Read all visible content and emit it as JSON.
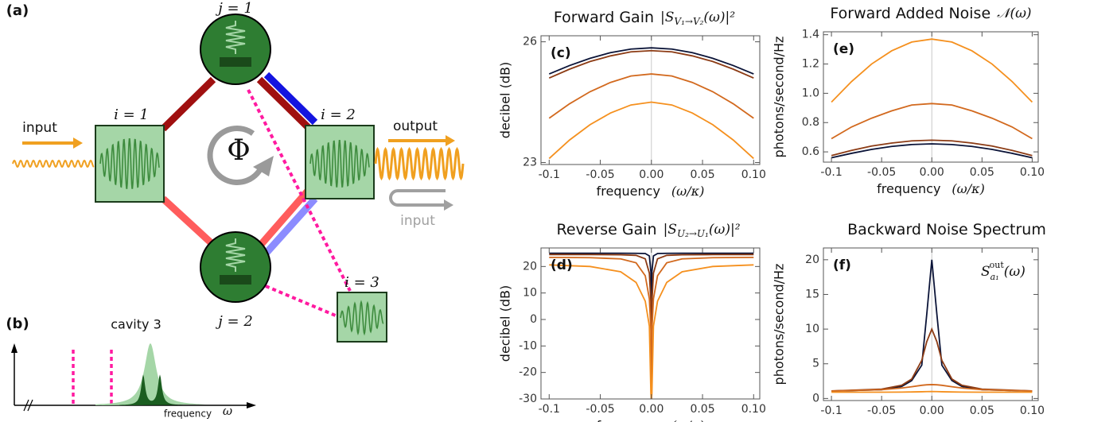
{
  "diagram": {
    "panel_a": "(a)",
    "panel_b": "(b)",
    "j1": "j = 1",
    "j2": "j = 2",
    "i1": "i = 1",
    "i2": "i = 2",
    "i3": "i = 3",
    "input_in": "input",
    "output": "output",
    "input_back": "input",
    "phi": "Φ",
    "cavity": "cavity 3",
    "freq": "frequency",
    "freq_sym": "ω"
  },
  "chart_data": [
    {
      "type": "line",
      "panel": "(c)",
      "title": "Forward Gain",
      "title_math": {
        "base": "|S",
        "sub": "V₁→V₂",
        "tail": "(ω)|²"
      },
      "ylabel": "decibel (dB)",
      "xlabel": "frequency",
      "xlabel_math": "(ω/κ)",
      "x": [
        -0.1,
        -0.08,
        -0.06,
        -0.04,
        -0.02,
        0,
        0.02,
        0.04,
        0.06,
        0.08,
        0.1
      ],
      "series": [
        {
          "color": "#0b1438",
          "values": [
            25.2,
            25.41,
            25.59,
            25.73,
            25.82,
            25.85,
            25.82,
            25.73,
            25.59,
            25.41,
            25.2
          ]
        },
        {
          "color": "#8c3b14",
          "values": [
            25.1,
            25.32,
            25.51,
            25.65,
            25.75,
            25.78,
            25.75,
            25.65,
            25.51,
            25.32,
            25.1
          ]
        },
        {
          "color": "#d2691e",
          "values": [
            24.1,
            24.46,
            24.76,
            24.99,
            25.15,
            25.2,
            25.15,
            24.99,
            24.76,
            24.46,
            24.1
          ]
        },
        {
          "color": "#f5901e",
          "values": [
            23.1,
            23.56,
            23.94,
            24.23,
            24.43,
            24.5,
            24.43,
            24.23,
            23.94,
            23.56,
            23.1
          ]
        }
      ],
      "xlim": [
        -0.108,
        0.106
      ],
      "xticks": [
        -0.1,
        -0.05,
        {
          "value": 0,
          "label": "0.00"
        },
        0.05,
        {
          "value": 0.1,
          "label": "0.10"
        }
      ],
      "ylim": [
        22.95,
        26.15
      ],
      "yticks": [
        23,
        26
      ]
    },
    {
      "type": "line",
      "panel": "(e)",
      "title": "Forward Added Noise",
      "title_math": {
        "base": "𝒩(ω)"
      },
      "ylabel": "photons/second/Hz",
      "xlabel": "frequency",
      "xlabel_math": "(ω/κ)",
      "x": [
        -0.1,
        -0.08,
        -0.06,
        -0.04,
        -0.02,
        0,
        0.02,
        0.04,
        0.06,
        0.08,
        0.1
      ],
      "series": [
        {
          "color": "#0b1438",
          "values": [
            0.56,
            0.59,
            0.617,
            0.637,
            0.65,
            0.655,
            0.65,
            0.637,
            0.617,
            0.59,
            0.56
          ]
        },
        {
          "color": "#8c3b14",
          "values": [
            0.575,
            0.61,
            0.64,
            0.66,
            0.675,
            0.68,
            0.675,
            0.66,
            0.64,
            0.61,
            0.575
          ]
        },
        {
          "color": "#d2691e",
          "values": [
            0.69,
            0.77,
            0.83,
            0.88,
            0.92,
            0.93,
            0.92,
            0.88,
            0.83,
            0.77,
            0.69
          ]
        },
        {
          "color": "#f5901e",
          "values": [
            0.94,
            1.08,
            1.2,
            1.29,
            1.35,
            1.37,
            1.35,
            1.29,
            1.2,
            1.08,
            0.94
          ]
        }
      ],
      "xlim": [
        -0.108,
        0.106
      ],
      "xticks": [
        -0.1,
        -0.05,
        {
          "value": 0,
          "label": "0.00"
        },
        0.05,
        {
          "value": 0.1,
          "label": "0.10"
        }
      ],
      "ylim": [
        0.53,
        1.42
      ],
      "yticks": [
        0.6,
        0.8,
        {
          "value": 1,
          "label": "1.0"
        },
        1.2,
        1.4
      ]
    },
    {
      "type": "line",
      "panel": "(d)",
      "title": "Reverse Gain",
      "title_math": {
        "base": "|S",
        "sub": "U₂→U₁",
        "tail": "(ω)|²"
      },
      "ylabel": "decibel (dB)",
      "xlabel": "frequency",
      "xlabel_math": "(ω/κ)",
      "x": [
        -0.1,
        -0.06,
        -0.03,
        -0.015,
        -0.006,
        -0.002,
        -0.0005,
        0,
        0.0005,
        0.002,
        0.006,
        0.015,
        0.03,
        0.06,
        0.1
      ],
      "series": [
        {
          "color": "#0b1438",
          "values": [
            25,
            25,
            25,
            24.98,
            24.9,
            24,
            18,
            -30,
            18,
            24,
            24.9,
            24.98,
            25,
            25,
            25
          ]
        },
        {
          "color": "#8c3b14",
          "values": [
            24.5,
            24.48,
            24.42,
            24.2,
            22.9,
            17.5,
            6.4,
            -30,
            6.4,
            17.5,
            22.9,
            24.2,
            24.42,
            24.48,
            24.5
          ]
        },
        {
          "color": "#d2691e",
          "values": [
            23.44,
            23.33,
            22.87,
            21.4,
            16.5,
            7.8,
            -4.1,
            -30,
            -4.1,
            7.8,
            16.5,
            21.4,
            22.87,
            23.33,
            23.44
          ]
        },
        {
          "color": "#f5901e",
          "values": [
            20.6,
            20,
            18,
            14,
            6.9,
            -2.5,
            -28,
            -30,
            -28,
            -2.5,
            6.9,
            14,
            18,
            20,
            20.6
          ]
        }
      ],
      "xlim": [
        -0.108,
        0.106
      ],
      "xticks": [
        -0.1,
        -0.05,
        {
          "value": 0,
          "label": "0.00"
        },
        0.05,
        {
          "value": 0.1,
          "label": "0.10"
        }
      ],
      "ylim": [
        -30,
        27
      ],
      "yticks": [
        -30,
        -20,
        -10,
        0,
        10,
        20
      ]
    },
    {
      "type": "line",
      "panel": "(f)",
      "title": "Backward Noise Spectrum",
      "annotation": {
        "base": "S",
        "sub": "a₁",
        "sup": "out",
        "tail": "(ω)"
      },
      "ylabel": "photons/second/Hz",
      "xlabel": "frequency",
      "xlabel_math": "(ω/κ)",
      "x": [
        -0.1,
        -0.05,
        -0.03,
        -0.02,
        -0.01,
        -0.005,
        0,
        0.005,
        0.01,
        0.02,
        0.03,
        0.05,
        0.1
      ],
      "series": [
        {
          "color": "#0b1438",
          "values": [
            1.07,
            1.27,
            1.73,
            2.58,
            4.8,
            12.2,
            20,
            12.2,
            4.8,
            2.58,
            1.73,
            1.27,
            1.07
          ]
        },
        {
          "color": "#8c3b14",
          "values": [
            1.09,
            1.35,
            1.9,
            2.8,
            5.5,
            8.2,
            10,
            8.2,
            5.5,
            2.8,
            1.9,
            1.35,
            1.09
          ]
        },
        {
          "color": "#d2691e",
          "values": [
            1.08,
            1.26,
            1.5,
            1.69,
            1.9,
            1.97,
            2,
            1.97,
            1.9,
            1.69,
            1.5,
            1.26,
            1.08
          ]
        },
        {
          "color": "#f5901e",
          "values": [
            0.9,
            0.9,
            0.92,
            0.94,
            0.97,
            0.99,
            1,
            0.99,
            0.97,
            0.94,
            0.92,
            0.9,
            0.9
          ]
        }
      ],
      "xlim": [
        -0.108,
        0.106
      ],
      "xticks": [
        -0.1,
        -0.05,
        {
          "value": 0,
          "label": "0.00"
        },
        0.05,
        {
          "value": 0.1,
          "label": "0.10"
        }
      ],
      "ylim": [
        -0.3,
        21.7
      ],
      "yticks": [
        0,
        5,
        10,
        15,
        20
      ]
    }
  ]
}
